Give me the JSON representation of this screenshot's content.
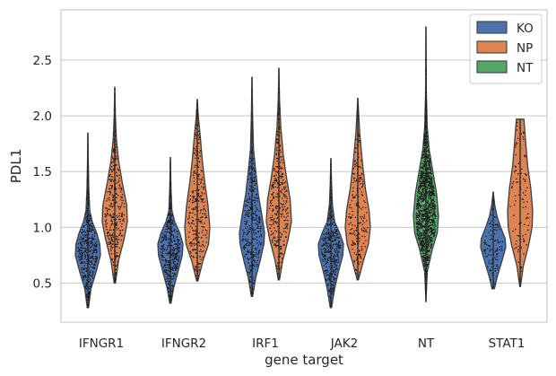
{
  "chart_data": {
    "type": "violin",
    "xlabel": "gene target",
    "ylabel": "PDL1",
    "ylim": [
      0.15,
      2.95
    ],
    "yticks": [
      0.5,
      1.0,
      1.5,
      2.0,
      2.5
    ],
    "ytick_labels": [
      "0.5",
      "1.0",
      "1.5",
      "2.0",
      "2.5"
    ],
    "grid": "horizontal",
    "legend_position": "top-right",
    "categories": [
      "IFNGR1",
      "IFNGR2",
      "IRF1",
      "JAK2",
      "NT",
      "STAT1"
    ],
    "series": [
      {
        "name": "KO",
        "color": "#4c72b0",
        "violins": [
          {
            "category": "IFNGR1",
            "min": 0.28,
            "max": 1.85,
            "median": 0.82,
            "q1": 0.7,
            "q3": 0.93,
            "n": 420,
            "profile": [
              [
                0.28,
                0.05
              ],
              [
                0.45,
                0.25
              ],
              [
                0.6,
                0.65
              ],
              [
                0.75,
                1.0
              ],
              [
                0.85,
                0.95
              ],
              [
                0.95,
                0.7
              ],
              [
                1.05,
                0.35
              ],
              [
                1.15,
                0.15
              ],
              [
                1.35,
                0.07
              ],
              [
                1.6,
                0.03
              ],
              [
                1.85,
                0.0
              ]
            ]
          },
          {
            "category": "IFNGR2",
            "min": 0.32,
            "max": 1.63,
            "median": 0.83,
            "q1": 0.72,
            "q3": 0.93,
            "n": 380,
            "profile": [
              [
                0.32,
                0.05
              ],
              [
                0.45,
                0.25
              ],
              [
                0.6,
                0.6
              ],
              [
                0.75,
                0.95
              ],
              [
                0.85,
                1.0
              ],
              [
                0.95,
                0.75
              ],
              [
                1.05,
                0.35
              ],
              [
                1.15,
                0.12
              ],
              [
                1.35,
                0.05
              ],
              [
                1.63,
                0.0
              ]
            ]
          },
          {
            "category": "IRF1",
            "min": 0.38,
            "max": 2.35,
            "median": 0.95,
            "q1": 0.82,
            "q3": 1.12,
            "n": 330,
            "profile": [
              [
                0.38,
                0.05
              ],
              [
                0.55,
                0.3
              ],
              [
                0.7,
                0.65
              ],
              [
                0.85,
                0.95
              ],
              [
                0.95,
                1.0
              ],
              [
                1.1,
                0.8
              ],
              [
                1.3,
                0.5
              ],
              [
                1.5,
                0.3
              ],
              [
                1.7,
                0.12
              ],
              [
                2.0,
                0.05
              ],
              [
                2.35,
                0.0
              ]
            ]
          },
          {
            "category": "JAK2",
            "min": 0.28,
            "max": 1.62,
            "median": 0.83,
            "q1": 0.7,
            "q3": 0.93,
            "n": 360,
            "profile": [
              [
                0.28,
                0.05
              ],
              [
                0.45,
                0.3
              ],
              [
                0.6,
                0.6
              ],
              [
                0.75,
                0.95
              ],
              [
                0.85,
                1.0
              ],
              [
                0.95,
                0.7
              ],
              [
                1.05,
                0.3
              ],
              [
                1.2,
                0.12
              ],
              [
                1.4,
                0.05
              ],
              [
                1.62,
                0.0
              ]
            ]
          },
          {
            "category": "STAT1",
            "min": 0.45,
            "max": 1.32,
            "median": 0.85,
            "q1": 0.76,
            "q3": 0.94,
            "n": 110,
            "profile": [
              [
                0.45,
                0.1
              ],
              [
                0.55,
                0.3
              ],
              [
                0.7,
                0.7
              ],
              [
                0.82,
                1.0
              ],
              [
                0.9,
                0.95
              ],
              [
                1.0,
                0.6
              ],
              [
                1.1,
                0.3
              ],
              [
                1.2,
                0.12
              ],
              [
                1.32,
                0.0
              ]
            ]
          }
        ]
      },
      {
        "name": "NP",
        "color": "#dd8452",
        "violins": [
          {
            "category": "IFNGR1",
            "min": 0.5,
            "max": 2.26,
            "median": 1.12,
            "q1": 0.97,
            "q3": 1.3,
            "n": 320,
            "profile": [
              [
                0.5,
                0.05
              ],
              [
                0.7,
                0.3
              ],
              [
                0.9,
                0.75
              ],
              [
                1.05,
                1.0
              ],
              [
                1.2,
                0.95
              ],
              [
                1.4,
                0.6
              ],
              [
                1.6,
                0.3
              ],
              [
                1.8,
                0.12
              ],
              [
                2.0,
                0.05
              ],
              [
                2.26,
                0.0
              ]
            ]
          },
          {
            "category": "IFNGR2",
            "min": 0.52,
            "max": 2.15,
            "median": 1.08,
            "q1": 0.93,
            "q3": 1.32,
            "n": 280,
            "profile": [
              [
                0.52,
                0.05
              ],
              [
                0.7,
                0.45
              ],
              [
                0.85,
                0.9
              ],
              [
                1.0,
                1.0
              ],
              [
                1.2,
                0.85
              ],
              [
                1.4,
                0.6
              ],
              [
                1.6,
                0.4
              ],
              [
                1.8,
                0.25
              ],
              [
                2.0,
                0.08
              ],
              [
                2.15,
                0.0
              ]
            ]
          },
          {
            "category": "IRF1",
            "min": 0.53,
            "max": 2.43,
            "median": 1.15,
            "q1": 1.0,
            "q3": 1.4,
            "n": 300,
            "profile": [
              [
                0.53,
                0.05
              ],
              [
                0.7,
                0.3
              ],
              [
                0.9,
                0.75
              ],
              [
                1.05,
                1.0
              ],
              [
                1.25,
                0.9
              ],
              [
                1.45,
                0.6
              ],
              [
                1.65,
                0.35
              ],
              [
                1.9,
                0.15
              ],
              [
                2.15,
                0.05
              ],
              [
                2.43,
                0.0
              ]
            ]
          },
          {
            "category": "JAK2",
            "min": 0.53,
            "max": 2.16,
            "median": 1.05,
            "q1": 0.88,
            "q3": 1.28,
            "n": 200,
            "profile": [
              [
                0.53,
                0.05
              ],
              [
                0.7,
                0.45
              ],
              [
                0.85,
                0.85
              ],
              [
                1.0,
                1.0
              ],
              [
                1.15,
                0.9
              ],
              [
                1.35,
                0.6
              ],
              [
                1.6,
                0.35
              ],
              [
                1.85,
                0.15
              ],
              [
                2.16,
                0.0
              ]
            ]
          },
          {
            "category": "STAT1",
            "min": 0.47,
            "max": 1.97,
            "median": 1.1,
            "q1": 0.85,
            "q3": 1.45,
            "n": 100,
            "profile": [
              [
                0.47,
                0.03
              ],
              [
                0.65,
                0.25
              ],
              [
                0.85,
                0.7
              ],
              [
                1.0,
                0.95
              ],
              [
                1.15,
                1.0
              ],
              [
                1.35,
                0.85
              ],
              [
                1.55,
                0.6
              ],
              [
                1.75,
                0.45
              ],
              [
                1.9,
                0.35
              ],
              [
                1.97,
                0.3
              ]
            ]
          }
        ]
      },
      {
        "name": "NT",
        "color": "#55a868",
        "violins": [
          {
            "category": "NT",
            "min": 0.33,
            "max": 2.8,
            "median": 1.1,
            "q1": 0.95,
            "q3": 1.38,
            "n": 1200,
            "profile": [
              [
                0.33,
                0.0
              ],
              [
                0.6,
                0.1
              ],
              [
                0.8,
                0.5
              ],
              [
                0.95,
                0.9
              ],
              [
                1.1,
                1.0
              ],
              [
                1.3,
                0.85
              ],
              [
                1.5,
                0.55
              ],
              [
                1.7,
                0.25
              ],
              [
                1.9,
                0.1
              ],
              [
                2.2,
                0.03
              ],
              [
                2.8,
                0.0
              ]
            ]
          }
        ]
      }
    ]
  },
  "legend": [
    {
      "label": "KO",
      "color": "#4c72b0"
    },
    {
      "label": "NP",
      "color": "#dd8452"
    },
    {
      "label": "NT",
      "color": "#55a868"
    }
  ]
}
